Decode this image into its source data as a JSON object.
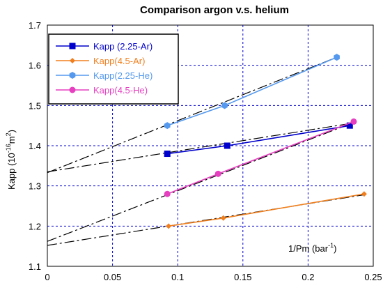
{
  "chart_data": {
    "type": "scatter",
    "title": "Comparison argon v.s. helium",
    "ylabel": {
      "base": "Kapp (10",
      "exp": "-16",
      "mid": "m",
      "exp2": "2",
      "end": ")"
    },
    "xlabel": {
      "base": "1/Pm (bar",
      "exp": "-1",
      "end": ")"
    },
    "xlim": [
      0,
      0.25
    ],
    "ylim": [
      1.1,
      1.7
    ],
    "x_ticks": [
      0,
      0.05,
      0.1,
      0.15,
      0.2,
      0.25
    ],
    "x_tick_labels": [
      "0",
      "0.05",
      "0.1",
      "0.15",
      "0.2",
      "0.25"
    ],
    "y_ticks": [
      1.1,
      1.2,
      1.3,
      1.4,
      1.5,
      1.6,
      1.7
    ],
    "y_tick_labels": [
      "1.1",
      "1.2",
      "1.3",
      "1.4",
      "1.5",
      "1.6",
      "1.7"
    ],
    "grid": true,
    "legend_position": "top-left",
    "series": [
      {
        "name": "Kapp (2.25-Ar)",
        "color": "#0000CC",
        "marker": "square",
        "points": [
          [
            0.092,
            1.38
          ],
          [
            0.138,
            1.4
          ],
          [
            0.232,
            1.45
          ]
        ],
        "fit": [
          [
            0,
            1.335
          ],
          [
            0.232,
            1.455
          ]
        ]
      },
      {
        "name": "Kapp(4.5-Ar)",
        "color": "#F07F1E",
        "marker": "diamond",
        "points": [
          [
            0.093,
            1.2
          ],
          [
            0.135,
            1.22
          ],
          [
            0.243,
            1.28
          ]
        ],
        "fit": [
          [
            0,
            1.152
          ],
          [
            0.243,
            1.278
          ]
        ]
      },
      {
        "name": "Kapp(2.25-He)",
        "color": "#5599EE",
        "marker": "hexagon",
        "points": [
          [
            0.092,
            1.45
          ],
          [
            0.136,
            1.5
          ],
          [
            0.222,
            1.62
          ]
        ],
        "fit": [
          [
            0,
            1.333
          ],
          [
            0.222,
            1.62
          ]
        ]
      },
      {
        "name": "Kapp(4.5-He)",
        "color": "#E63FC0",
        "marker": "circle",
        "points": [
          [
            0.092,
            1.28
          ],
          [
            0.131,
            1.33
          ],
          [
            0.235,
            1.46
          ]
        ],
        "fit": [
          [
            0,
            1.162
          ],
          [
            0.235,
            1.458
          ]
        ]
      }
    ]
  }
}
